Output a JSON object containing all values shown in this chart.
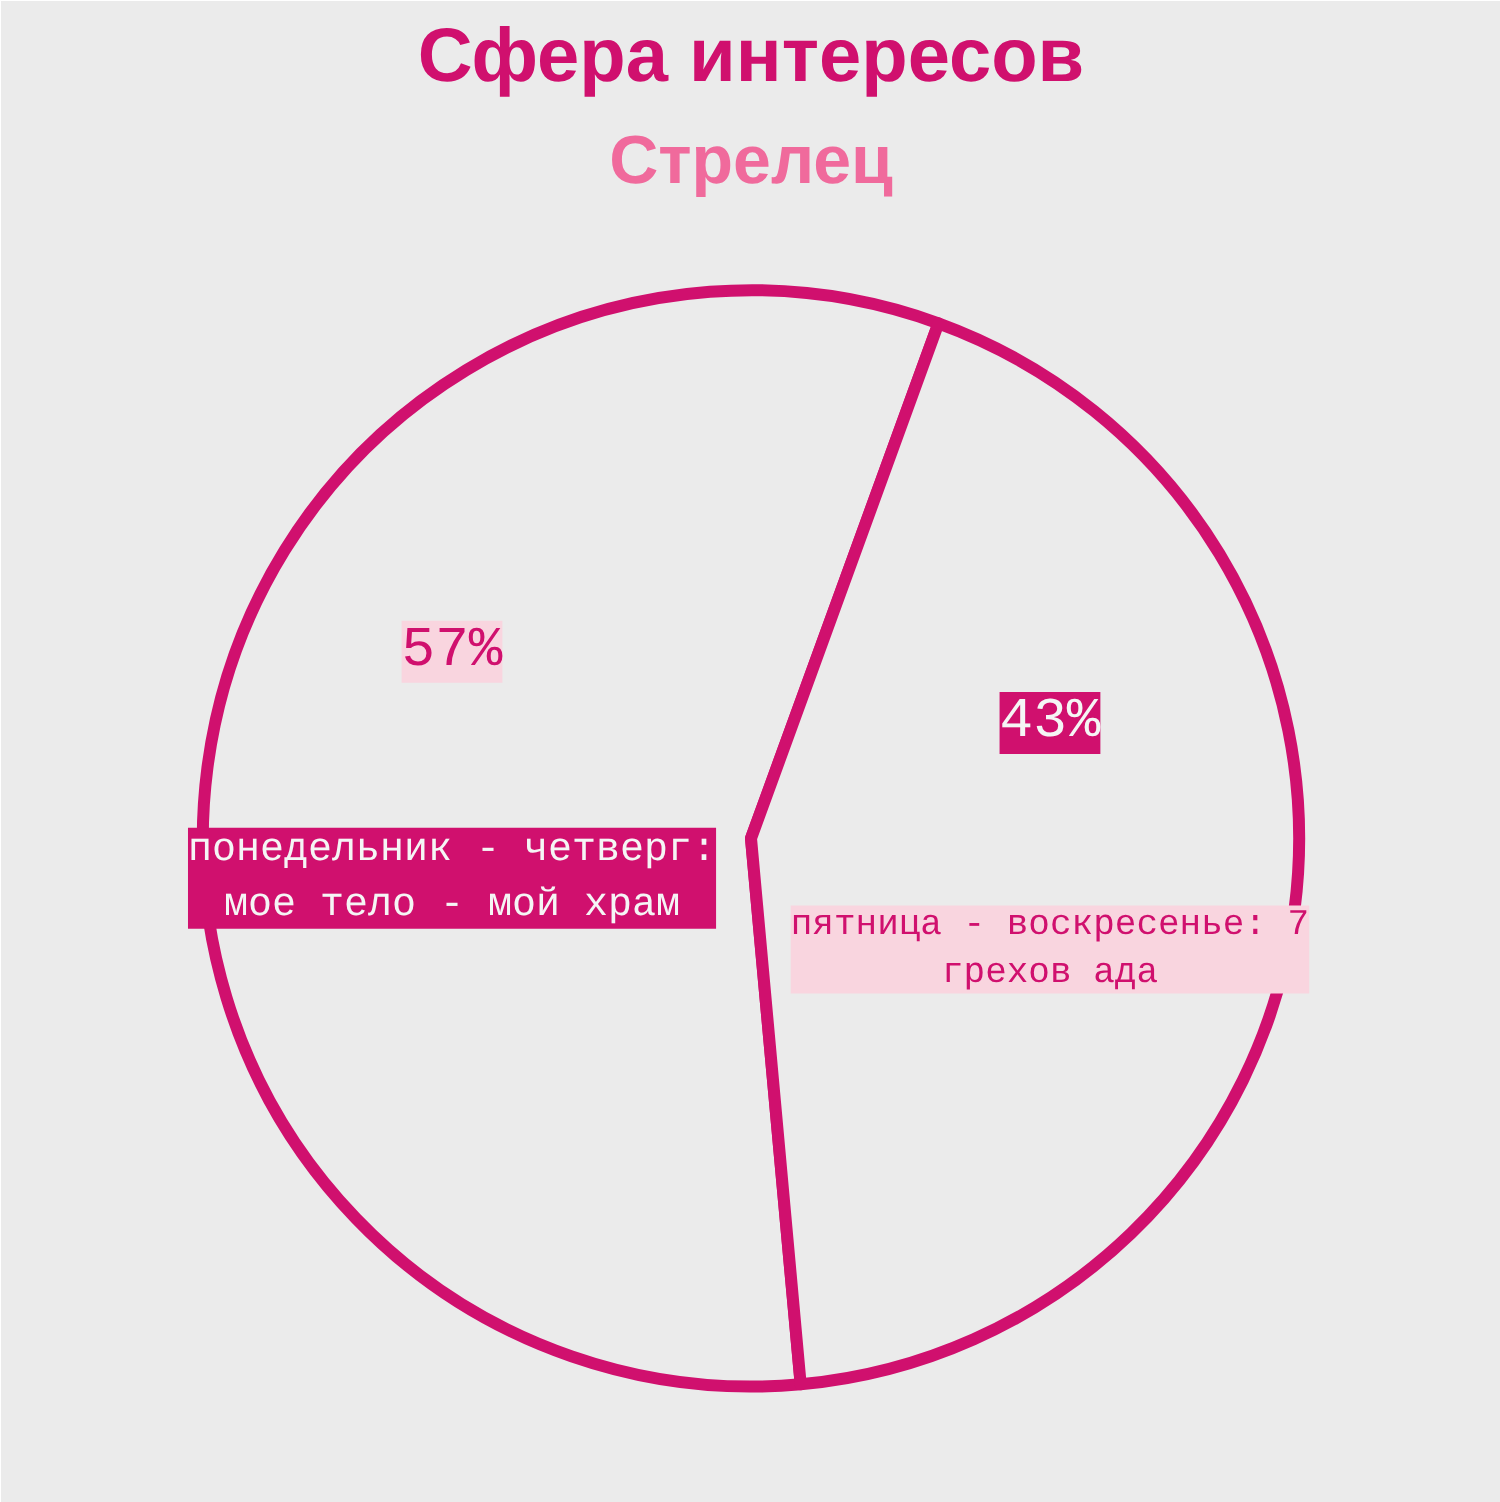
{
  "chart_data": {
    "type": "pie",
    "title": "Сфера интересов",
    "subtitle": "Стрелец",
    "categories": [
      "понедельник - четверг: мое тело - мой храм",
      "пятница - воскресенье: 7 грехов ада"
    ],
    "values": [
      57,
      43
    ],
    "colors": [
      "#ebebeb",
      "#ebebeb"
    ],
    "value_labels": [
      "57%",
      "43%"
    ]
  }
}
